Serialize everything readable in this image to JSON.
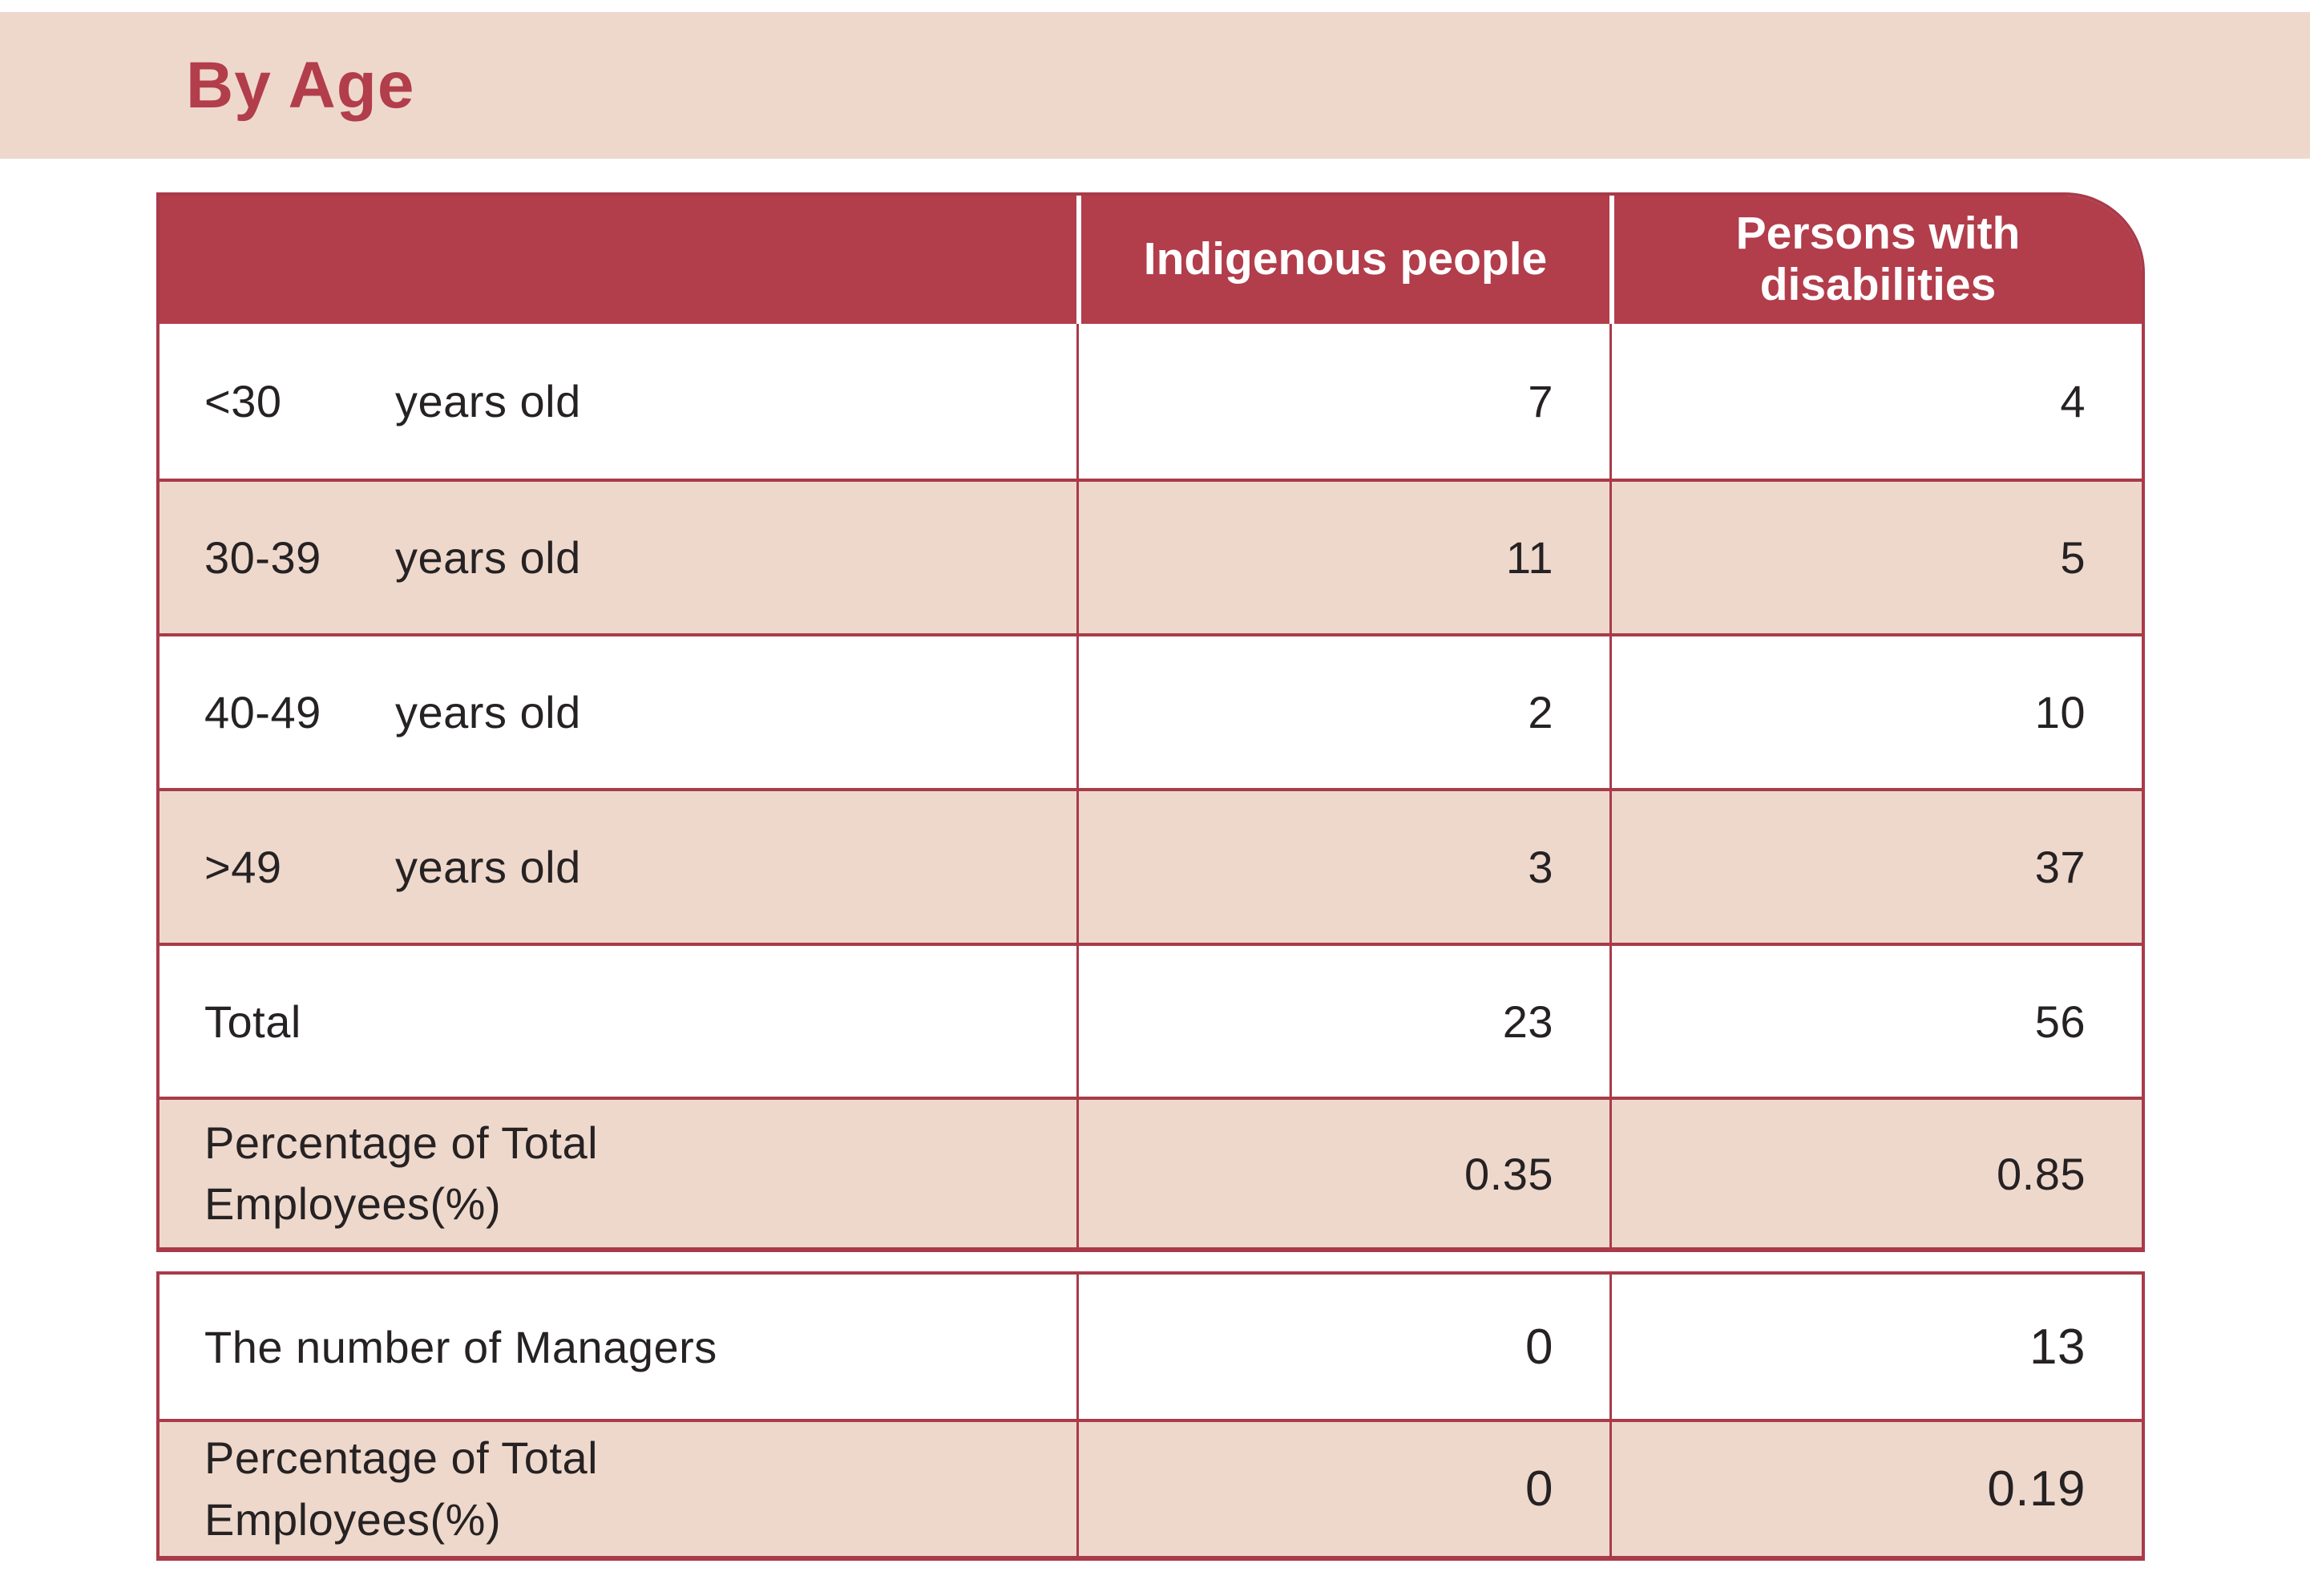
{
  "title": "By Age",
  "colors": {
    "accent_red": "#b23d4b",
    "border_red": "#a93b49",
    "row_pink": "#eed8cc",
    "text": "#262223"
  },
  "age_table": {
    "col_headers": {
      "indigenous": "Indigenous people",
      "disabilities": "Persons with disabilities"
    },
    "rows": [
      {
        "age": "<30",
        "unit": "years old",
        "indigenous": "7",
        "disabilities": "4"
      },
      {
        "age": "30-39",
        "unit": "years old",
        "indigenous": "11",
        "disabilities": "5"
      },
      {
        "age": "40-49",
        "unit": "years old",
        "indigenous": "2",
        "disabilities": "10"
      },
      {
        "age": ">49",
        "unit": "years old",
        "indigenous": "3",
        "disabilities": "37"
      }
    ],
    "total_row": {
      "label": "Total",
      "indigenous": "23",
      "disabilities": "56"
    },
    "percentage_row": {
      "label_line1": "Percentage of Total",
      "label_line2": "Employees(%)",
      "indigenous": "0.35",
      "disabilities": "0.85"
    }
  },
  "managers_table": {
    "managers_row": {
      "label": "The number of Managers",
      "indigenous": "0",
      "disabilities": "13"
    },
    "percentage_row": {
      "label_line1": "Percentage of Total",
      "label_line2": "Employees(%)",
      "indigenous": "0",
      "disabilities": "0.19"
    }
  }
}
